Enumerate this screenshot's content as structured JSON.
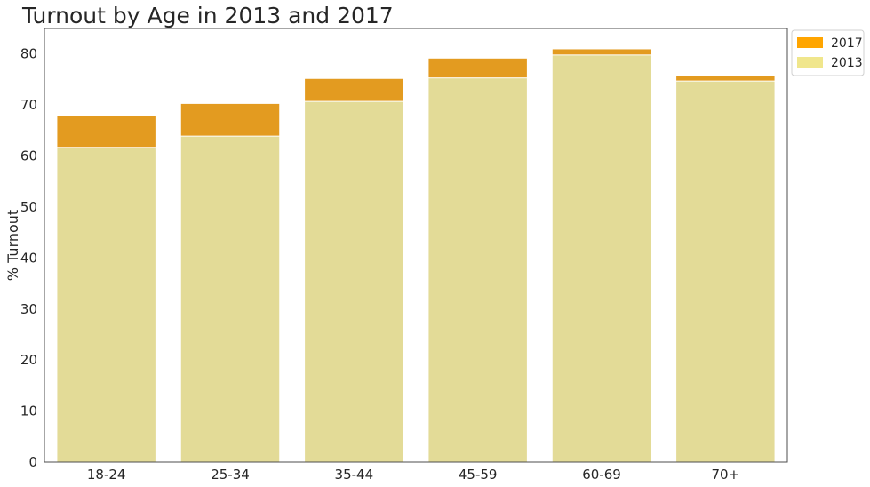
{
  "chart_data": {
    "type": "bar",
    "title": "Turnout by Age in 2013 and 2017",
    "ylabel": "% Turnout",
    "xlabel": "",
    "ylim": [
      0,
      85
    ],
    "yticks": [
      0,
      10,
      20,
      30,
      40,
      50,
      60,
      70,
      80
    ],
    "categories": [
      "18-24",
      "25-34",
      "35-44",
      "45-59",
      "60-69",
      "70+"
    ],
    "series": [
      {
        "name": "2017",
        "color": "#e39b20",
        "values": [
          68.0,
          70.3,
          75.2,
          79.2,
          81.0,
          75.7
        ]
      },
      {
        "name": "2013",
        "color": "#e3db97",
        "values": [
          61.7,
          63.9,
          70.7,
          75.3,
          79.8,
          74.7
        ]
      }
    ],
    "legend": {
      "placement": "top-right",
      "entries": [
        {
          "label": "2017",
          "color": "#ffa500"
        },
        {
          "label": "2013",
          "color": "#f0e68c"
        }
      ]
    },
    "grid": false
  }
}
